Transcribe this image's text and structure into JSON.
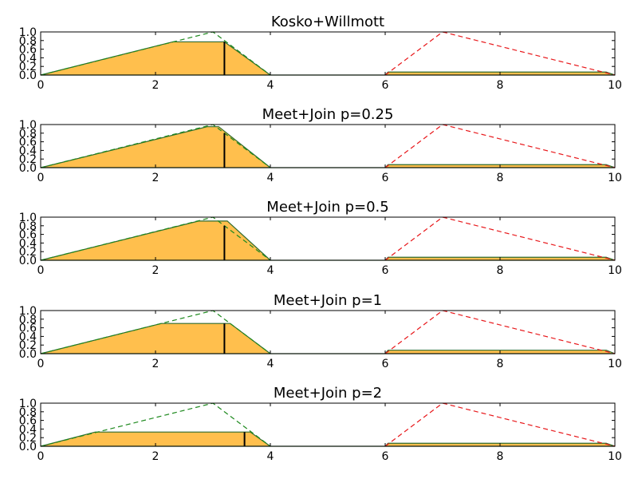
{
  "colors": {
    "fill": "#FFBF4D",
    "fill_edge": "#2E6B2E",
    "green_dashed": "#1F8A1F",
    "red_dashed": "#E8191C",
    "axis": "#000000",
    "background": "#FFFFFF"
  },
  "chart_data": [
    {
      "type": "area",
      "title": "Kosko+Willmott",
      "xlim": [
        0,
        10
      ],
      "ylim": [
        0,
        1
      ],
      "xticks": [
        "0",
        "2",
        "4",
        "6",
        "8",
        "10"
      ],
      "yticks": [
        "0.0",
        "0.2",
        "0.4",
        "0.6",
        "0.8",
        "1.0"
      ],
      "curves": {
        "green_triangle": {
          "x": [
            0,
            3,
            4
          ],
          "y": [
            0,
            1,
            0
          ]
        },
        "red_triangle": {
          "x": [
            6,
            7,
            10
          ],
          "y": [
            0,
            1,
            0
          ]
        }
      },
      "filled": {
        "x": [
          0,
          2.3,
          3.2,
          4,
          6,
          6.05,
          9.85,
          10
        ],
        "y": [
          0,
          0.77,
          0.77,
          0,
          0,
          0.07,
          0.07,
          0
        ]
      },
      "marker_x": 3.2,
      "marker_y": 0.77
    },
    {
      "type": "area",
      "title": "Meet+Join p=0.25",
      "xlim": [
        0,
        10
      ],
      "ylim": [
        0,
        1
      ],
      "xticks": [
        "0",
        "2",
        "4",
        "6",
        "8",
        "10"
      ],
      "yticks": [
        "0.0",
        "0.2",
        "0.4",
        "0.6",
        "0.8",
        "1.0"
      ],
      "curves": {
        "green_triangle": {
          "x": [
            0,
            3,
            4
          ],
          "y": [
            0,
            1,
            0
          ]
        },
        "red_triangle": {
          "x": [
            6,
            7,
            10
          ],
          "y": [
            0,
            1,
            0
          ]
        }
      },
      "filled": {
        "x": [
          0,
          2.9,
          3.1,
          4,
          6,
          6.05,
          9.85,
          10
        ],
        "y": [
          0,
          0.95,
          0.95,
          0,
          0,
          0.07,
          0.07,
          0
        ]
      },
      "marker_x": 3.2,
      "marker_y": 0.8
    },
    {
      "type": "area",
      "title": "Meet+Join p=0.5",
      "xlim": [
        0,
        10
      ],
      "ylim": [
        0,
        1
      ],
      "xticks": [
        "0",
        "2",
        "4",
        "6",
        "8",
        "10"
      ],
      "yticks": [
        "0.0",
        "0.2",
        "0.4",
        "0.6",
        "0.8",
        "1.0"
      ],
      "curves": {
        "green_triangle": {
          "x": [
            0,
            3,
            4
          ],
          "y": [
            0,
            1,
            0
          ]
        },
        "red_triangle": {
          "x": [
            6,
            7,
            10
          ],
          "y": [
            0,
            1,
            0
          ]
        }
      },
      "filled": {
        "x": [
          0,
          2.75,
          3.25,
          4,
          6,
          6.05,
          9.85,
          10
        ],
        "y": [
          0,
          0.91,
          0.91,
          0,
          0,
          0.07,
          0.07,
          0
        ]
      },
      "marker_x": 3.2,
      "marker_y": 0.8
    },
    {
      "type": "area",
      "title": "Meet+Join p=1",
      "xlim": [
        0,
        10
      ],
      "ylim": [
        0,
        1
      ],
      "xticks": [
        "0",
        "2",
        "4",
        "6",
        "8",
        "10"
      ],
      "yticks": [
        "0.0",
        "0.2",
        "0.4",
        "0.6",
        "0.8",
        "1.0"
      ],
      "curves": {
        "green_triangle": {
          "x": [
            0,
            3,
            4
          ],
          "y": [
            0,
            1,
            0
          ]
        },
        "red_triangle": {
          "x": [
            6,
            7,
            10
          ],
          "y": [
            0,
            1,
            0
          ]
        }
      },
      "filled": {
        "x": [
          0,
          2.1,
          3.3,
          4,
          6,
          6.05,
          9.85,
          10
        ],
        "y": [
          0,
          0.7,
          0.7,
          0,
          0,
          0.08,
          0.08,
          0
        ]
      },
      "marker_x": 3.2,
      "marker_y": 0.7
    },
    {
      "type": "area",
      "title": "Meet+Join p=2",
      "xlim": [
        0,
        10
      ],
      "ylim": [
        0,
        1
      ],
      "xticks": [
        "0",
        "2",
        "4",
        "6",
        "8",
        "10"
      ],
      "yticks": [
        "0.0",
        "0.2",
        "0.4",
        "0.6",
        "0.8",
        "1.0"
      ],
      "curves": {
        "green_triangle": {
          "x": [
            0,
            3,
            4
          ],
          "y": [
            0,
            1,
            0
          ]
        },
        "red_triangle": {
          "x": [
            6,
            7,
            10
          ],
          "y": [
            0,
            1,
            0
          ]
        }
      },
      "filled": {
        "x": [
          0,
          0.95,
          3.65,
          4,
          6,
          6.05,
          9.85,
          10
        ],
        "y": [
          0,
          0.33,
          0.33,
          0,
          0,
          0.07,
          0.07,
          0
        ]
      },
      "marker_x": 3.55,
      "marker_y": 0.33
    }
  ]
}
